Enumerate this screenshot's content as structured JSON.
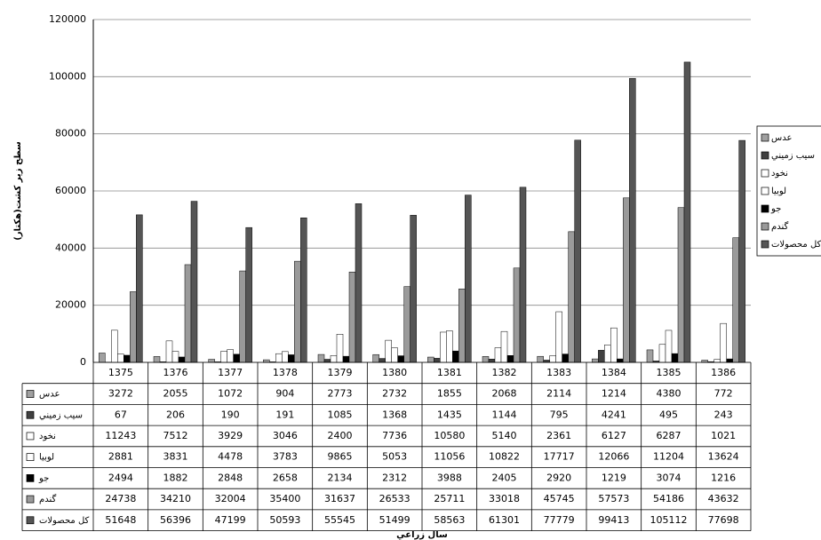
{
  "chart_data": {
    "type": "bar",
    "y_label": "سطح زير كشت(هكتار)",
    "x_label": "سال زراعي",
    "categories": [
      "1375",
      "1376",
      "1377",
      "1378",
      "1379",
      "1380",
      "1381",
      "1382",
      "1383",
      "1384",
      "1385",
      "1386"
    ],
    "series": [
      {
        "name": "عدس",
        "color": "#a0a0a0",
        "values": [
          3272,
          2055,
          1072,
          904,
          2773,
          2732,
          1855,
          2068,
          2114,
          1214,
          4380,
          772
        ]
      },
      {
        "name": "سيب زميني",
        "color": "#404040",
        "values": [
          67,
          206,
          190,
          191,
          1085,
          1368,
          1435,
          1144,
          795,
          4241,
          495,
          243
        ]
      },
      {
        "name": "نخود",
        "color": "#ffffff",
        "values": [
          11243,
          7512,
          3929,
          3046,
          2400,
          7736,
          10580,
          5140,
          2361,
          6127,
          6287,
          1021
        ]
      },
      {
        "name": "لوبيا",
        "color": "#ffffff",
        "values": [
          2881,
          3831,
          4478,
          3783,
          9865,
          5053,
          11056,
          10822,
          17717,
          12066,
          11204,
          13624
        ]
      },
      {
        "name": "جو",
        "color": "#000000",
        "values": [
          2494,
          1882,
          2848,
          2658,
          2134,
          2312,
          3988,
          2405,
          2920,
          1219,
          3074,
          1216
        ]
      },
      {
        "name": "گندم",
        "color": "#9a9a9a",
        "values": [
          24738,
          34210,
          32004,
          35400,
          31637,
          26533,
          25711,
          33018,
          45745,
          57573,
          54186,
          43632
        ]
      },
      {
        "name": "كل محصولات",
        "color": "#555555",
        "values": [
          51648,
          56396,
          47199,
          50593,
          55545,
          51499,
          58563,
          61301,
          77779,
          99413,
          105112,
          77698
        ]
      }
    ],
    "ylim": [
      0,
      120000
    ],
    "yticks": [
      0,
      20000,
      40000,
      60000,
      80000,
      100000,
      120000
    ],
    "grid": true
  }
}
